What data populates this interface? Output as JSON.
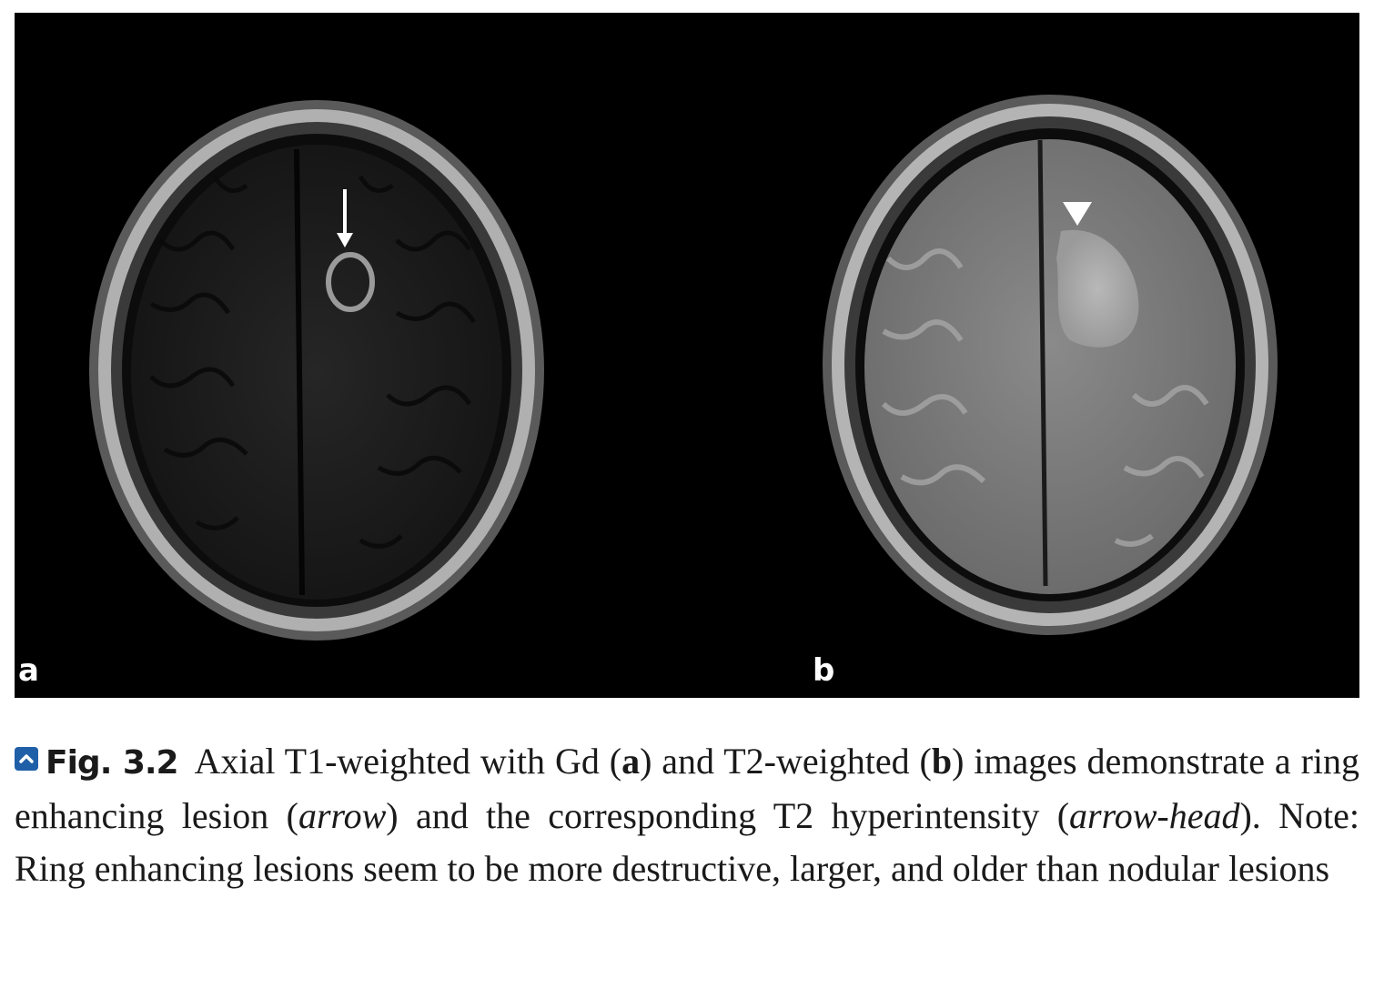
{
  "figure": {
    "panel_labels": {
      "a": "a",
      "b": "b"
    },
    "icons": {
      "caption": "chevron-up-icon",
      "arrow": "arrow-icon",
      "arrowhead": "arrowhead-icon"
    }
  },
  "caption": {
    "figure_number": "Fig. 3.2",
    "parts": {
      "p1": "Axial T1-weighted with Gd (",
      "a": "a",
      "p2": ") and T2-weighted (",
      "b": "b",
      "p3": ") images demonstrate a ring enhancing lesion (",
      "arrow": "arrow",
      "p4": ") and the corresponding T2 hyperintensity (",
      "arrowhead": "arrow-head",
      "p5": "). Note: Ring enhancing lesions seem to be more destructive, larger, and older than nodular lesions"
    }
  }
}
